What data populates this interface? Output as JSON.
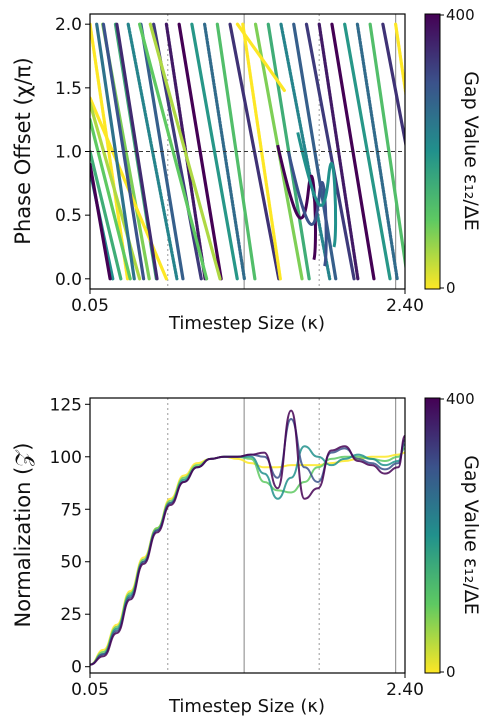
{
  "chart_data": [
    {
      "type": "scatter",
      "panel": "top",
      "ylabel": "Phase Offset (χ/π)",
      "xlabel": "Timestep Size (κ)",
      "xlim": [
        0.05,
        2.4
      ],
      "ylim": [
        -0.08,
        2.08
      ],
      "x_tick_labels": [
        "0.05",
        "2.40"
      ],
      "x_ticks": [
        0.05,
        2.4
      ],
      "y_ticks": [
        0.0,
        0.5,
        1.0,
        1.5,
        2.0
      ],
      "y_tick_labels": [
        "0.0",
        "0.5",
        "1.0",
        "1.5",
        "2.0"
      ],
      "reference_hline": 1.0,
      "vlines_dotted": [
        0.63,
        1.76
      ],
      "vlines_solid": [
        1.2,
        2.33
      ],
      "grid": false,
      "colorbar": {
        "label": "Gap Value ε₁₂/ΔE",
        "min_label": "0",
        "max_label": "400",
        "colormap": "viridis"
      },
      "series": [
        {
          "gap": 0,
          "points": [
            [
              0.05,
              1.42
            ],
            [
              0.62,
              0.0
            ]
          ],
          "wrap": [
            [
              1.15,
              2.0
            ],
            [
              1.5,
              1.48
            ]
          ]
        },
        {
          "gap": 50,
          "points": [
            [
              0.05,
              1.38
            ],
            [
              0.42,
              0.0
            ]
          ],
          "wrap": [
            [
              0.5,
              2.0
            ],
            [
              1.02,
              0.0
            ]
          ]
        },
        {
          "gap": 100,
          "points": [
            [
              0.05,
              1.25
            ],
            [
              0.35,
              0.0
            ]
          ],
          "wrap": [
            [
              0.42,
              2.0
            ],
            [
              0.92,
              0.0
            ]
          ]
        },
        {
          "gap": 150,
          "points": [
            [
              0.05,
              1.0
            ],
            [
              0.28,
              0.0
            ]
          ]
        },
        {
          "gap": 200,
          "points": [
            [
              0.05,
              0.85
            ],
            [
              0.22,
              0.0
            ]
          ]
        },
        {
          "gap": 250,
          "points": [
            [
              0.1,
              2.0
            ],
            [
              0.38,
              0.0
            ]
          ]
        },
        {
          "gap": 300,
          "points": [
            [
              0.15,
              2.0
            ],
            [
              0.45,
              0.0
            ]
          ]
        },
        {
          "gap": 350,
          "points": [
            [
              0.25,
              2.0
            ],
            [
              0.55,
              0.0
            ]
          ]
        },
        {
          "gap": 400,
          "points": [
            [
              0.05,
              0.9
            ],
            [
              0.2,
              0.0
            ]
          ]
        }
      ]
    },
    {
      "type": "line",
      "panel": "bottom",
      "ylabel": "Normalization (𝒵)",
      "xlabel": "Timestep Size (κ)",
      "xlim": [
        0.05,
        2.4
      ],
      "ylim": [
        -3,
        128
      ],
      "x_tick_labels": [
        "0.05",
        "2.40"
      ],
      "x_ticks": [
        0.05,
        2.4
      ],
      "y_ticks": [
        0,
        25,
        50,
        75,
        100,
        125
      ],
      "y_tick_labels": [
        "0",
        "25",
        "50",
        "75",
        "100",
        "125"
      ],
      "vlines_dotted": [
        0.63,
        1.76
      ],
      "vlines_solid": [
        1.2,
        2.33
      ],
      "grid": false,
      "colorbar": {
        "label": "Gap Value ε₁₂/ΔE",
        "min_label": "0",
        "max_label": "400",
        "colormap": "viridis"
      },
      "x": [
        0.05,
        0.15,
        0.25,
        0.35,
        0.45,
        0.55,
        0.65,
        0.75,
        0.85,
        0.95,
        1.05,
        1.15,
        1.25,
        1.35,
        1.45,
        1.55,
        1.65,
        1.75,
        1.85,
        1.95,
        2.05,
        2.15,
        2.25,
        2.35,
        2.4
      ],
      "series": [
        {
          "gap": 0,
          "values": [
            1,
            8,
            20,
            36,
            52,
            66,
            80,
            91,
            97,
            99,
            100,
            99,
            97,
            95,
            95,
            96,
            96,
            96,
            97,
            98,
            99,
            100,
            100,
            101,
            102
          ]
        },
        {
          "gap": 100,
          "values": [
            1,
            7,
            19,
            35,
            51,
            66,
            79,
            90,
            96,
            99,
            100,
            100,
            99,
            88,
            84,
            83,
            88,
            95,
            99,
            100,
            100,
            99,
            98,
            100,
            104
          ]
        },
        {
          "gap": 200,
          "values": [
            1,
            6,
            18,
            34,
            50,
            65,
            78,
            89,
            95,
            99,
            100,
            100,
            100,
            92,
            80,
            90,
            105,
            100,
            96,
            99,
            101,
            99,
            96,
            98,
            106
          ]
        },
        {
          "gap": 300,
          "values": [
            1,
            6,
            17,
            33,
            50,
            65,
            78,
            88,
            95,
            99,
            100,
            100,
            101,
            100,
            90,
            118,
            95,
            88,
            102,
            104,
            99,
            97,
            94,
            97,
            108
          ]
        },
        {
          "gap": 400,
          "values": [
            1,
            5,
            16,
            32,
            49,
            64,
            77,
            88,
            95,
            99,
            100,
            100,
            101,
            102,
            85,
            122,
            80,
            85,
            103,
            105,
            98,
            96,
            92,
            95,
            110
          ]
        }
      ]
    }
  ]
}
